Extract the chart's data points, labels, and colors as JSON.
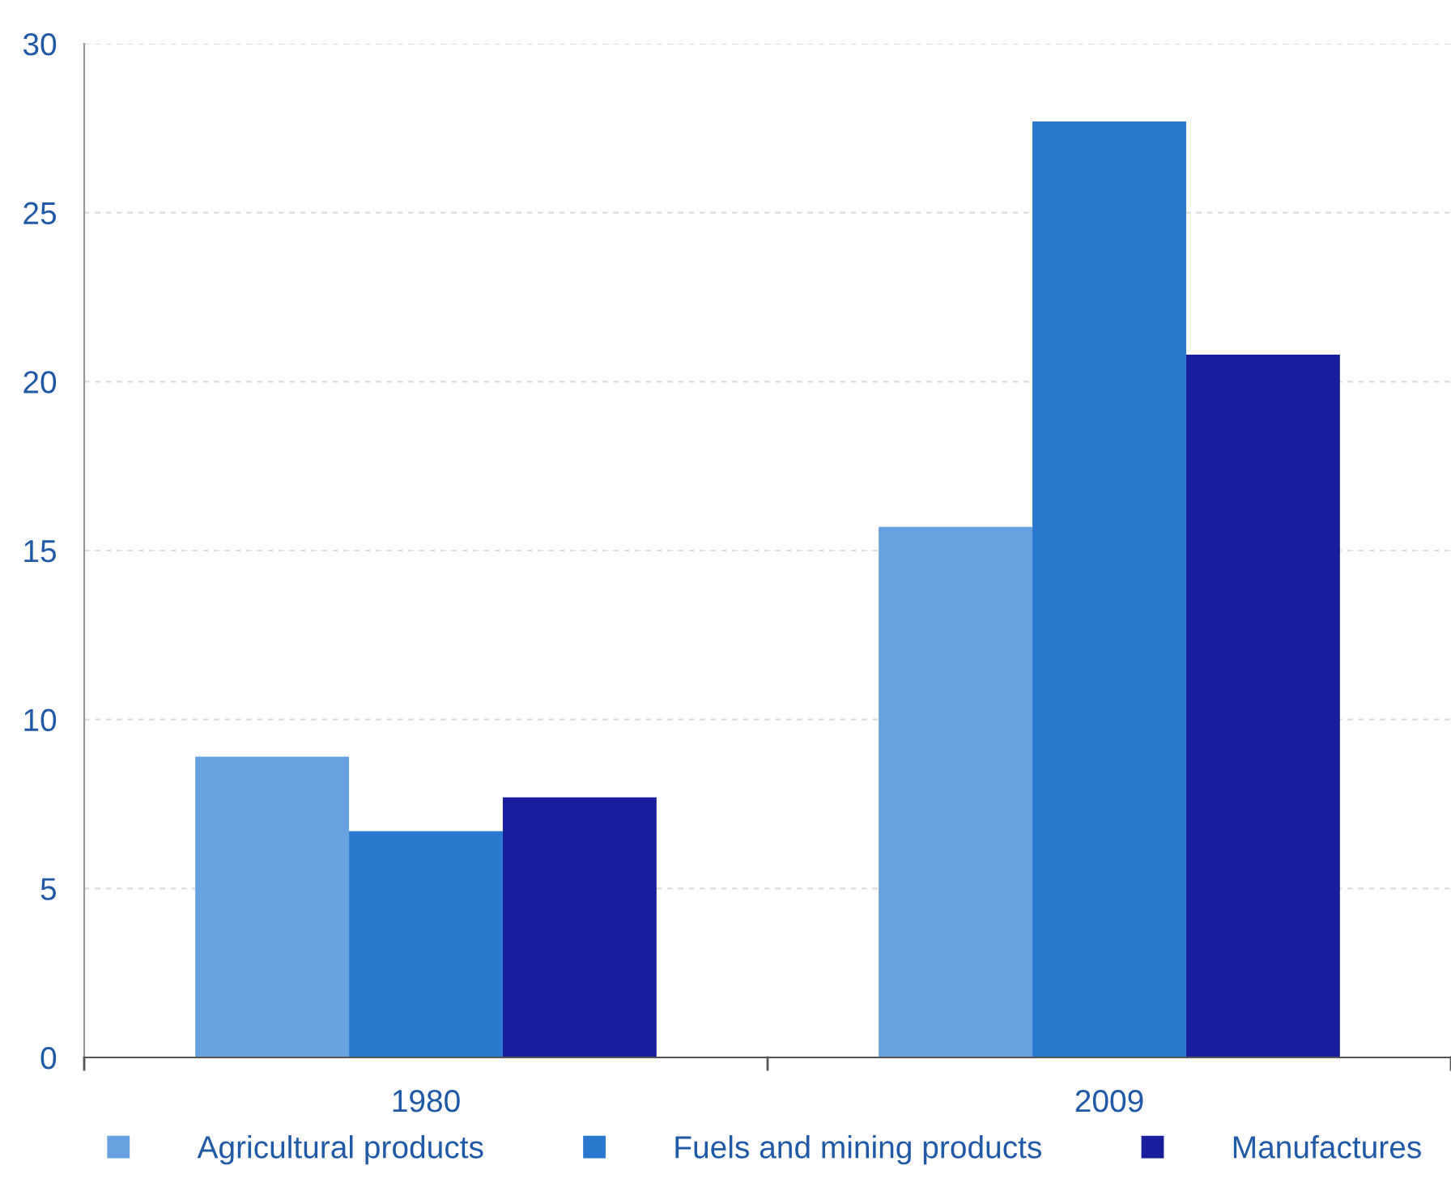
{
  "chart_data": {
    "type": "bar",
    "categories": [
      "1980",
      "2009"
    ],
    "series": [
      {
        "name": "Agricultural products",
        "color": "#67a1e0",
        "values": [
          8.9,
          15.7
        ]
      },
      {
        "name": "Fuels and mining products",
        "color": "#2a79d0",
        "values": [
          6.7,
          27.7
        ]
      },
      {
        "name": "Manufactures",
        "color": "#181e9c",
        "values": [
          7.7,
          20.8
        ]
      }
    ],
    "ylim": [
      0,
      30
    ],
    "yticks": [
      0,
      5,
      10,
      15,
      20,
      25,
      30
    ],
    "grid": "y",
    "legend": "bottom"
  }
}
